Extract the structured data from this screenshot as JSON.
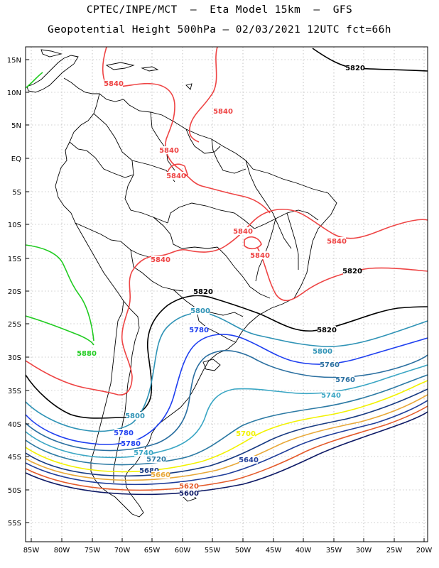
{
  "title": {
    "line1": "CPTEC/INPE/MCT  –  Eta Model 15km  –  GFS",
    "line2": "Geopotential Height 500hPa – 02/03/2021 12UTC fct=66h"
  },
  "axes": {
    "lat_labels": [
      "15N",
      "10N",
      "5N",
      "EQ",
      "5S",
      "10S",
      "15S",
      "20S",
      "25S",
      "30S",
      "35S",
      "40S",
      "45S",
      "50S",
      "55S"
    ],
    "lon_labels": [
      "85W",
      "80W",
      "75W",
      "70W",
      "65W",
      "60W",
      "55W",
      "50W",
      "45W",
      "40W",
      "35W",
      "30W",
      "25W",
      "20W"
    ]
  },
  "colors": {
    "c5880": "#22cc22",
    "c5840": "#ee4444",
    "c5820": "#000000",
    "c5800": "#2f93b6",
    "c5780": "#1e3ff0",
    "c5760": "#2a6fa0",
    "c5740": "#3aa6c4",
    "c5720": "#2c7aa4",
    "c5700": "#f2f200",
    "c5680": "#173a82",
    "c5660": "#e8a838",
    "c5640": "#1f3d9a",
    "c5620": "#e45a2a",
    "c5600": "#0e1a66",
    "coast": "#000000",
    "grid": "#999999"
  },
  "contour_labels": [
    {
      "text": "5820",
      "color": "c5820"
    },
    {
      "text": "5840",
      "color": "c5840"
    },
    {
      "text": "5840",
      "color": "c5840"
    },
    {
      "text": "5840",
      "color": "c5840"
    },
    {
      "text": "5840",
      "color": "c5840"
    },
    {
      "text": "5840",
      "color": "c5840"
    },
    {
      "text": "5840",
      "color": "c5840"
    },
    {
      "text": "5840",
      "color": "c5840"
    },
    {
      "text": "5840",
      "color": "c5840"
    },
    {
      "text": "5880",
      "color": "c5880"
    },
    {
      "text": "5820",
      "color": "c5820"
    },
    {
      "text": "5820",
      "color": "c5820"
    },
    {
      "text": "5820",
      "color": "c5820"
    },
    {
      "text": "5800",
      "color": "c5800"
    },
    {
      "text": "5800",
      "color": "c5800"
    },
    {
      "text": "5800",
      "color": "c5800"
    },
    {
      "text": "5780",
      "color": "c5780"
    },
    {
      "text": "5780",
      "color": "c5780"
    },
    {
      "text": "5780",
      "color": "c5780"
    },
    {
      "text": "5760",
      "color": "c5760"
    },
    {
      "text": "5760",
      "color": "c5760"
    },
    {
      "text": "5740",
      "color": "c5740"
    },
    {
      "text": "5740",
      "color": "c5740"
    },
    {
      "text": "5720",
      "color": "c5720"
    },
    {
      "text": "5700",
      "color": "c5700"
    },
    {
      "text": "5680",
      "color": "c5680"
    },
    {
      "text": "5660",
      "color": "c5660"
    },
    {
      "text": "5640",
      "color": "c5640"
    },
    {
      "text": "5620",
      "color": "c5620"
    },
    {
      "text": "5600",
      "color": "c5600"
    }
  ]
}
